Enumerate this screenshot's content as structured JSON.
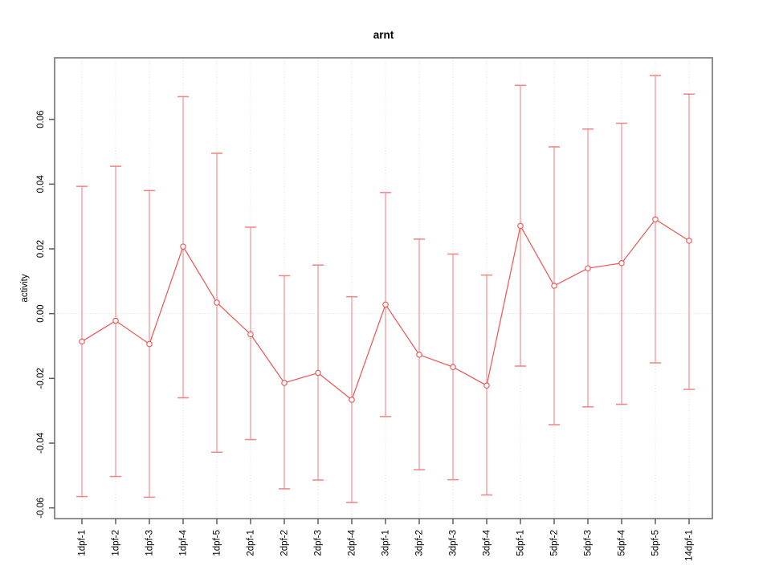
{
  "title": "arnt",
  "chart_data": {
    "type": "line",
    "subtype": "points-with-error-bars",
    "title": "arnt",
    "xlabel": "",
    "ylabel": "activity",
    "categories": [
      "1dpf-1",
      "1dpf-2",
      "1dpf-3",
      "1dpf-4",
      "1dpf-5",
      "2dpf-1",
      "2dpf-2",
      "2dpf-3",
      "2dpf-4",
      "3dpf-1",
      "3dpf-2",
      "3dpf-3",
      "3dpf-4",
      "5dpf-1",
      "5dpf-2",
      "5dpf-3",
      "5dpf-4",
      "5dpf-5",
      "14dpf-1"
    ],
    "series": [
      {
        "name": "activity",
        "values": [
          -0.0086,
          -0.0022,
          -0.0094,
          0.0207,
          0.0034,
          -0.0064,
          -0.0214,
          -0.0183,
          -0.0266,
          0.0028,
          -0.0127,
          -0.0165,
          -0.0222,
          0.0271,
          0.0086,
          0.014,
          0.0156,
          0.0291,
          0.0225
        ],
        "error_lower_bounds": [
          -0.0565,
          -0.0503,
          -0.0567,
          -0.026,
          -0.0428,
          -0.0389,
          -0.0541,
          -0.0514,
          -0.0583,
          -0.0318,
          -0.0482,
          -0.0513,
          -0.056,
          -0.0162,
          -0.0343,
          -0.0288,
          -0.028,
          -0.0152,
          -0.0234
        ],
        "error_upper_bounds": [
          0.0393,
          0.0455,
          0.038,
          0.067,
          0.0495,
          0.0267,
          0.0117,
          0.015,
          0.0052,
          0.0374,
          0.023,
          0.0184,
          0.0119,
          0.0705,
          0.0515,
          0.057,
          0.0588,
          0.0735,
          0.0678
        ]
      }
    ],
    "ytick_values": [
      -0.06,
      -0.04,
      -0.02,
      0.0,
      0.02,
      0.04,
      0.06
    ],
    "ytick_labels": [
      "-0.06",
      "-0.04",
      "-0.02",
      "0.00",
      "0.02",
      "0.04",
      "0.06"
    ],
    "ylim": [
      -0.0633,
      0.079
    ],
    "grid": {
      "vertical_dotted_per_category": true,
      "horizontal_zero_line_dotted": true
    },
    "legend": "none",
    "marker": "open-circle",
    "colors": {
      "series_line": "#ee5252",
      "point_stroke": "#ee5252",
      "point_fill": "#ffffff",
      "error_bar": "#f4a0a0",
      "error_cap": "#f18383",
      "grid": "#d9d9d9",
      "zero_line": "#d9d9d9",
      "frame": "#7d7d7d",
      "tick": "#5a5a5a",
      "text": "#000000",
      "background": "#ffffff"
    }
  }
}
